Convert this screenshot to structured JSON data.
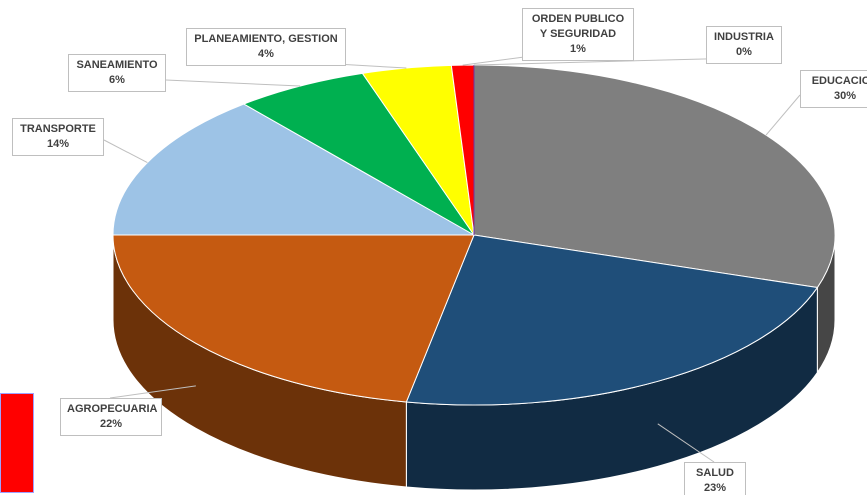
{
  "chart_data": {
    "type": "pie",
    "categories": [
      "EDUCACION",
      "SALUD",
      "AGROPECUARIA",
      "TRANSPORTE",
      "SANEAMIENTO",
      "PLANEAMIENTO, GESTION",
      "ORDEN PUBLICO Y SEGURIDAD",
      "INDUSTRIA"
    ],
    "values": [
      30,
      23,
      22,
      14,
      6,
      4,
      1,
      0
    ],
    "value_labels": [
      "30%",
      "23%",
      "22%",
      "14%",
      "6%",
      "4%",
      "1%",
      "0%"
    ],
    "colors": [
      "#7f7f7f",
      "#1f4e79",
      "#c55a11",
      "#9dc3e6",
      "#00b050",
      "#ffff00",
      "#ff0000",
      "#7030a0"
    ]
  }
}
